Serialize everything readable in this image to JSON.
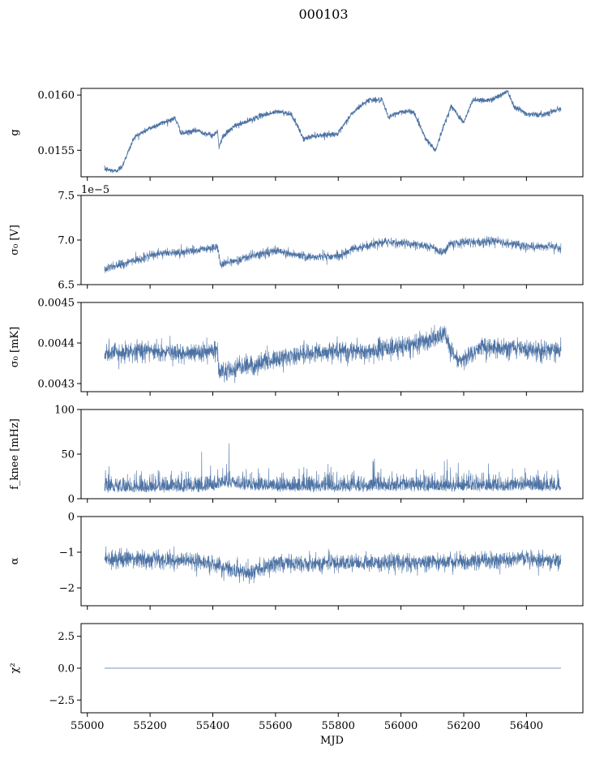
{
  "figure": {
    "title": "000103",
    "series_color": "#4c72a4"
  },
  "chart_data": [
    {
      "type": "line",
      "name_key": "g",
      "title": "",
      "xlabel": "",
      "ylabel": "g",
      "xlim": [
        54980,
        56580
      ],
      "ylim": [
        0.01526,
        0.01606
      ],
      "yticks": [
        0.0155,
        0.016
      ],
      "ytick_labels": [
        "0.0155",
        "0.0160"
      ],
      "offset_text": "",
      "grid": false,
      "x_range": [
        55055,
        56510
      ],
      "profile": {
        "x": [
          55055,
          55090,
          55110,
          55150,
          55200,
          55250,
          55280,
          55300,
          55350,
          55400,
          55415,
          55420,
          55430,
          55470,
          55500,
          55560,
          55610,
          55650,
          55690,
          55720,
          55760,
          55800,
          55840,
          55870,
          55900,
          55940,
          55960,
          56000,
          56040,
          56080,
          56110,
          56140,
          56160,
          56200,
          56230,
          56280,
          56320,
          56340,
          56360,
          56400,
          56450,
          56510
        ],
        "y": [
          0.01533,
          0.01531,
          0.01535,
          0.01562,
          0.0157,
          0.01576,
          0.01579,
          0.01565,
          0.01568,
          0.01563,
          0.01568,
          0.01552,
          0.01562,
          0.01572,
          0.01575,
          0.01582,
          0.01585,
          0.01583,
          0.0156,
          0.01563,
          0.01564,
          0.01565,
          0.01582,
          0.0159,
          0.01596,
          0.01595,
          0.0158,
          0.01585,
          0.01585,
          0.0156,
          0.0155,
          0.01575,
          0.0159,
          0.01575,
          0.01596,
          0.01595,
          0.016,
          0.01604,
          0.0159,
          0.01583,
          0.01582,
          0.01588
        ]
      },
      "noise": 1.2e-05,
      "spike_low": 1e-05
    },
    {
      "type": "line",
      "name_key": "sigma_v",
      "title": "",
      "xlabel": "",
      "ylabel": "σ₀ [V]",
      "xlim": [
        54980,
        56580
      ],
      "ylim": [
        6.5,
        7.5
      ],
      "yticks": [
        6.5,
        7.0,
        7.5
      ],
      "ytick_labels": [
        "6.5",
        "7.0",
        "7.5"
      ],
      "offset_text": "1e−5",
      "grid": false,
      "x_range": [
        55055,
        56510
      ],
      "profile": {
        "x": [
          55055,
          55100,
          55200,
          55250,
          55300,
          55380,
          55415,
          55425,
          55500,
          55600,
          55700,
          55800,
          55850,
          55950,
          56050,
          56100,
          56130,
          56160,
          56200,
          56300,
          56400,
          56510
        ],
        "y": [
          6.67,
          6.72,
          6.82,
          6.86,
          6.86,
          6.9,
          6.92,
          6.72,
          6.8,
          6.88,
          6.81,
          6.82,
          6.9,
          6.98,
          6.95,
          6.92,
          6.85,
          6.96,
          6.97,
          6.99,
          6.93,
          6.92
        ]
      },
      "noise": 0.025,
      "spike_low": 0.04
    },
    {
      "type": "line",
      "name_key": "sigma_mk",
      "title": "",
      "xlabel": "",
      "ylabel": "σ₀ [mK]",
      "xlim": [
        54980,
        56580
      ],
      "ylim": [
        0.00428,
        0.0045
      ],
      "yticks": [
        0.0043,
        0.0044,
        0.0045
      ],
      "ytick_labels": [
        "0.0043",
        "0.0044",
        "0.0045"
      ],
      "offset_text": "",
      "grid": false,
      "x_range": [
        55055,
        56510
      ],
      "profile": {
        "x": [
          55055,
          55150,
          55250,
          55300,
          55415,
          55420,
          55500,
          55600,
          55700,
          55800,
          55900,
          56000,
          56100,
          56140,
          56180,
          56250,
          56350,
          56450,
          56510
        ],
        "y": [
          0.004375,
          0.00438,
          0.00438,
          0.00437,
          0.00438,
          0.00433,
          0.00434,
          0.00436,
          0.004375,
          0.00438,
          0.00438,
          0.00439,
          0.00441,
          0.00442,
          0.00435,
          0.00439,
          0.00439,
          0.00438,
          0.00438
        ]
      },
      "noise": 1.2e-05,
      "spike_low": 2e-05
    },
    {
      "type": "line",
      "name_key": "fknee",
      "title": "",
      "xlabel": "",
      "ylabel": "f_knee [mHz]",
      "xlim": [
        54980,
        56580
      ],
      "ylim": [
        0,
        100
      ],
      "yticks": [
        0,
        50,
        100
      ],
      "ytick_labels": [
        "0",
        "50",
        "100"
      ],
      "offset_text": "",
      "grid": false,
      "x_range": [
        55055,
        56510
      ],
      "profile": {
        "x": [
          55055,
          55200,
          55350,
          55410,
          55420,
          55460,
          55500,
          55550,
          55600,
          55700,
          55800,
          55900,
          56000,
          56100,
          56200,
          56300,
          56400,
          56510
        ],
        "y": [
          9,
          9,
          12,
          18,
          25,
          30,
          20,
          18,
          15,
          12,
          12,
          15,
          16,
          14,
          15,
          16,
          15,
          15
        ]
      },
      "noise": 9,
      "spike_low": 0
    },
    {
      "type": "line",
      "name_key": "alpha",
      "title": "",
      "xlabel": "",
      "ylabel": "α",
      "xlim": [
        54980,
        56580
      ],
      "ylim": [
        -2.5,
        0
      ],
      "yticks": [
        -2,
        -1,
        0
      ],
      "ytick_labels": [
        "−2",
        "−1",
        "0"
      ],
      "offset_text": "",
      "grid": false,
      "x_range": [
        55055,
        56510
      ],
      "profile": {
        "x": [
          55055,
          55200,
          55350,
          55420,
          55500,
          55550,
          55600,
          55700,
          55800,
          55900,
          56000,
          56200,
          56400,
          56510
        ],
        "y": [
          -1.2,
          -1.2,
          -1.25,
          -1.4,
          -1.55,
          -1.5,
          -1.3,
          -1.3,
          -1.3,
          -1.3,
          -1.3,
          -1.25,
          -1.2,
          -1.25
        ]
      },
      "noise": 0.12,
      "spike_low": 0.2
    },
    {
      "type": "line",
      "name_key": "chi2",
      "title": "",
      "xlabel": "MJD",
      "ylabel": "χ²",
      "xlim": [
        54980,
        56580
      ],
      "ylim": [
        -3.5,
        3.5
      ],
      "yticks": [
        -2.5,
        0.0,
        2.5
      ],
      "ytick_labels": [
        "−2.5",
        "0.0",
        "2.5"
      ],
      "offset_text": "",
      "grid": false,
      "x_range": [
        55055,
        56510
      ],
      "profile": {
        "x": [
          55055,
          56510
        ],
        "y": [
          0,
          0
        ]
      },
      "noise": 0,
      "spike_low": 0
    }
  ],
  "x_axis": {
    "ticks": [
      55000,
      55200,
      55400,
      55600,
      55800,
      56000,
      56200,
      56400
    ],
    "tick_labels": [
      "55000",
      "55200",
      "55400",
      "55600",
      "55800",
      "56000",
      "56200",
      "56400"
    ]
  }
}
